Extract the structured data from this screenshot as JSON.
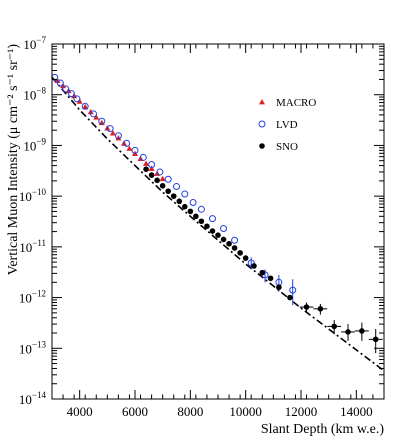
{
  "chart_data": {
    "type": "scatter",
    "title": "",
    "xlabel": "Slant Depth (km w.e.)",
    "ylabel": "Vertical Muon Intensity (μ cm⁻² s⁻¹ sr⁻¹)",
    "xlim": [
      3000,
      15000
    ],
    "ylim": [
      1e-14,
      1e-07
    ],
    "yscale": "log",
    "x_ticks": [
      4000,
      6000,
      8000,
      10000,
      12000,
      14000
    ],
    "y_ticks": [
      {
        "value": 1e-14,
        "mantissa": "10",
        "exp": "−14"
      },
      {
        "value": 1e-13,
        "mantissa": "10",
        "exp": "−13"
      },
      {
        "value": 1e-12,
        "mantissa": "10",
        "exp": "−12"
      },
      {
        "value": 1e-11,
        "mantissa": "10",
        "exp": "−11"
      },
      {
        "value": 1e-10,
        "mantissa": "10",
        "exp": "−10"
      },
      {
        "value": 1e-09,
        "mantissa": "10",
        "exp": "−9"
      },
      {
        "value": 1e-08,
        "mantissa": "10",
        "exp": "−8"
      },
      {
        "value": 1e-07,
        "mantissa": "10",
        "exp": "−7"
      }
    ],
    "grid": false,
    "legend_position": "top-right",
    "fit_curve": {
      "style": "dash-dot",
      "color": "#000000",
      "x": [
        3000,
        4000,
        5000,
        6000,
        7000,
        8000,
        9000,
        10000,
        11000,
        12000,
        13000,
        14000,
        15000
      ],
      "y": [
        2.2e-08,
        5e-09,
        1.35e-09,
        4e-10,
        1.2e-10,
        4e-11,
        1.35e-11,
        4.6e-12,
        1.7e-12,
        6.2e-13,
        2.4e-13,
        9.3e-14,
        3.6e-14
      ]
    },
    "series": [
      {
        "name": "MACRO",
        "marker": "triangle",
        "color": "#e02020",
        "x": [
          3200,
          3400,
          3600,
          3800,
          4000,
          4200,
          4400,
          4600,
          4800,
          5000,
          5200,
          5400,
          5600,
          5800,
          6000,
          6200,
          6400,
          6600,
          6800,
          7000
        ],
        "y": [
          1.9e-08,
          1.5e-08,
          1.2e-08,
          9.5e-09,
          7.4e-09,
          5.8e-09,
          4.6e-09,
          3.6e-09,
          2.8e-09,
          2.2e-09,
          1.75e-09,
          1.4e-09,
          1.1e-09,
          8.7e-10,
          6.9e-10,
          5.5e-10,
          4.4e-10,
          3.5e-10,
          2.8e-10,
          2.2e-10
        ]
      },
      {
        "name": "LVD",
        "marker": "open-circle",
        "color": "#2040e0",
        "x": [
          3100,
          3300,
          3500,
          3700,
          3900,
          4200,
          4500,
          4800,
          5100,
          5400,
          5700,
          6000,
          6300,
          6600,
          6900,
          7200,
          7500,
          7800,
          8100,
          8400,
          8800,
          9200,
          9600,
          10200,
          10700,
          11200,
          11700
        ],
        "y": [
          2.2e-08,
          1.7e-08,
          1.3e-08,
          1.05e-08,
          8.3e-09,
          5.9e-09,
          4.2e-09,
          3e-09,
          2.15e-09,
          1.55e-09,
          1.1e-09,
          8e-10,
          5.8e-10,
          4.2e-10,
          3e-10,
          2.15e-10,
          1.55e-10,
          1.1e-10,
          7.5e-11,
          5.5e-11,
          3.6e-11,
          2.3e-11,
          1.35e-11,
          4.8e-12,
          2.8e-12,
          2e-12,
          1.4e-12
        ],
        "y_err_high": [
          null,
          null,
          null,
          null,
          null,
          null,
          null,
          null,
          null,
          null,
          null,
          null,
          null,
          null,
          null,
          null,
          null,
          null,
          null,
          null,
          null,
          null,
          null,
          6.2e-12,
          3.6e-12,
          2.8e-12,
          2.3e-12
        ],
        "y_err_low": [
          null,
          null,
          null,
          null,
          null,
          null,
          null,
          null,
          null,
          null,
          null,
          null,
          null,
          null,
          null,
          null,
          null,
          null,
          null,
          null,
          null,
          null,
          null,
          3.6e-12,
          2e-12,
          1.3e-12,
          7e-13
        ]
      },
      {
        "name": "SNO",
        "marker": "filled-circle",
        "color": "#000000",
        "x": [
          6400,
          6600,
          6800,
          7000,
          7200,
          7400,
          7600,
          7800,
          8000,
          8200,
          8400,
          8600,
          8800,
          9000,
          9200,
          9400,
          9600,
          9800,
          10000,
          10300,
          10600,
          10900,
          11200,
          11600,
          12200,
          12700,
          13200,
          13700,
          14200,
          14700
        ],
        "y": [
          3.4e-10,
          2.6e-10,
          2.05e-10,
          1.6e-10,
          1.25e-10,
          1e-10,
          7.9e-11,
          6.2e-11,
          5e-11,
          4e-11,
          3.2e-11,
          2.55e-11,
          2.05e-11,
          1.7e-11,
          1.4e-11,
          1.15e-11,
          9.5e-12,
          7.6e-12,
          6e-12,
          4.2e-12,
          3.1e-12,
          2.4e-12,
          1.6e-12,
          1e-12,
          6.5e-13,
          6e-13,
          2.7e-13,
          2.1e-13,
          2.2e-13,
          1.5e-13
        ],
        "x_err": [
          null,
          null,
          null,
          null,
          null,
          null,
          null,
          null,
          null,
          null,
          null,
          null,
          null,
          null,
          null,
          null,
          null,
          null,
          null,
          null,
          null,
          null,
          null,
          null,
          250,
          250,
          250,
          250,
          250,
          250
        ],
        "y_err_high": [
          null,
          null,
          null,
          null,
          null,
          null,
          null,
          null,
          null,
          null,
          null,
          null,
          null,
          null,
          null,
          null,
          null,
          null,
          null,
          null,
          null,
          null,
          null,
          null,
          8e-13,
          7.5e-13,
          3.6e-13,
          3e-13,
          3.2e-13,
          2.4e-13
        ],
        "y_err_low": [
          null,
          null,
          null,
          null,
          null,
          null,
          null,
          null,
          null,
          null,
          null,
          null,
          null,
          null,
          null,
          null,
          null,
          null,
          null,
          null,
          null,
          null,
          null,
          null,
          5e-13,
          4.6e-13,
          1.9e-13,
          1.4e-13,
          1.4e-13,
          8e-14
        ]
      }
    ]
  }
}
